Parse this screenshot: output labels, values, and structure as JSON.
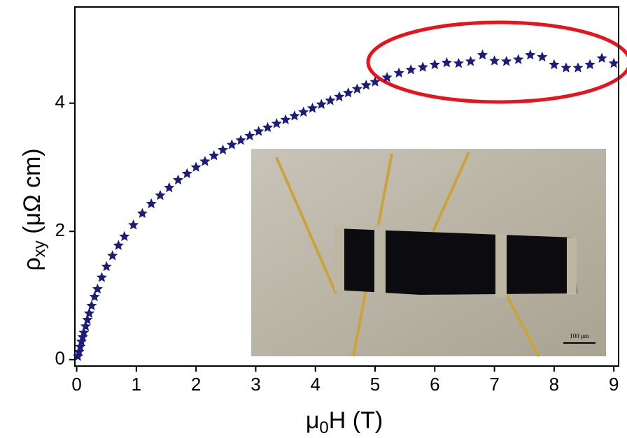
{
  "chart_data": {
    "type": "scatter",
    "xlabel": {
      "main": "μ",
      "sub": "0",
      "rest": "H (T)"
    },
    "ylabel": {
      "main": "ρ",
      "sub": "xy",
      "rest": " (μΩ cm)"
    },
    "inset_scale_label": "100 μm",
    "color": "#1c1c7a",
    "marker": "star",
    "xlim": [
      -0.03,
      9.08
    ],
    "ylim": [
      -0.1,
      5.5
    ],
    "xticks": [
      0,
      1,
      2,
      3,
      4,
      5,
      6,
      7,
      8,
      9
    ],
    "yticks": [
      0,
      2,
      4
    ],
    "x": [
      0.02,
      0.04,
      0.06,
      0.08,
      0.1,
      0.12,
      0.15,
      0.18,
      0.21,
      0.25,
      0.3,
      0.35,
      0.42,
      0.5,
      0.6,
      0.7,
      0.8,
      0.95,
      1.1,
      1.25,
      1.4,
      1.55,
      1.7,
      1.85,
      2.0,
      2.15,
      2.3,
      2.45,
      2.6,
      2.75,
      2.9,
      3.05,
      3.2,
      3.35,
      3.5,
      3.65,
      3.8,
      3.95,
      4.1,
      4.25,
      4.4,
      4.55,
      4.7,
      4.85,
      5.0,
      5.2,
      5.4,
      5.6,
      5.8,
      6.0,
      6.2,
      6.4,
      6.6,
      6.8,
      7.0,
      7.2,
      7.4,
      7.6,
      7.8,
      8.0,
      8.2,
      8.4,
      8.6,
      8.8,
      9.0
    ],
    "values": [
      0.05,
      0.12,
      0.2,
      0.28,
      0.35,
      0.42,
      0.52,
      0.62,
      0.72,
      0.84,
      0.98,
      1.1,
      1.28,
      1.45,
      1.62,
      1.78,
      1.92,
      2.1,
      2.28,
      2.43,
      2.56,
      2.68,
      2.8,
      2.9,
      3.0,
      3.09,
      3.18,
      3.27,
      3.35,
      3.42,
      3.49,
      3.56,
      3.62,
      3.68,
      3.74,
      3.8,
      3.86,
      3.92,
      3.98,
      4.04,
      4.1,
      4.16,
      4.22,
      4.28,
      4.33,
      4.4,
      4.47,
      4.52,
      4.56,
      4.6,
      4.63,
      4.62,
      4.65,
      4.75,
      4.66,
      4.65,
      4.68,
      4.75,
      4.72,
      4.6,
      4.55,
      4.55,
      4.6,
      4.7,
      4.62
    ]
  }
}
